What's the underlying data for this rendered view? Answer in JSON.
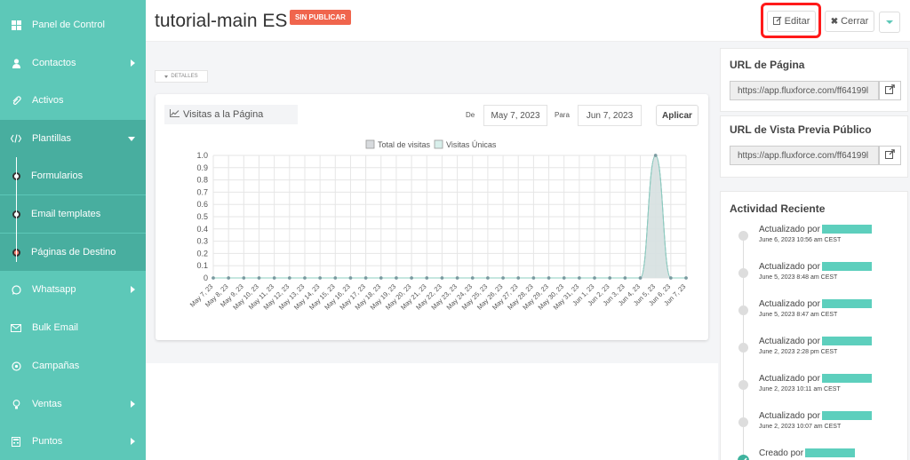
{
  "sidebar": {
    "items": [
      {
        "label": "Panel de Control",
        "icon": "grid-icon"
      },
      {
        "label": "Contactos",
        "icon": "user-icon"
      },
      {
        "label": "Activos",
        "icon": "paperclip-icon"
      },
      {
        "label": "Plantillas",
        "icon": "code-icon"
      },
      {
        "label": "Formularios"
      },
      {
        "label": "Email templates"
      },
      {
        "label": "Páginas de Destino"
      },
      {
        "label": "Whatsapp",
        "icon": "whatsapp-icon"
      },
      {
        "label": "Bulk Email",
        "icon": "envelope-icon"
      },
      {
        "label": "Campañas",
        "icon": "target-icon"
      },
      {
        "label": "Ventas",
        "icon": "lightbulb-icon"
      },
      {
        "label": "Puntos",
        "icon": "calculator-icon"
      }
    ]
  },
  "header": {
    "title": "tutorial-main ES",
    "badge": "SIN PUBLICAR",
    "edit_label": "Editar",
    "close_label": "Cerrar"
  },
  "tab": {
    "label": "DETALLES"
  },
  "chart_card": {
    "title": "Visitas a la Página",
    "from_label": "De",
    "from_value": "May 7, 2023",
    "to_label": "Para",
    "to_value": "Jun 7, 2023",
    "apply_label": "Aplicar"
  },
  "chart_data": {
    "type": "area",
    "series": [
      {
        "name": "Total de visitas",
        "color": "#d7dadd",
        "values": [
          0,
          0,
          0,
          0,
          0,
          0,
          0,
          0,
          0,
          0,
          0,
          0,
          0,
          0,
          0,
          0,
          0,
          0,
          0,
          0,
          0,
          0,
          0,
          0,
          0,
          0,
          0,
          0,
          0,
          1,
          0,
          0
        ]
      },
      {
        "name": "Visitas Únicas",
        "color": "#d8efeb",
        "values": [
          0,
          0,
          0,
          0,
          0,
          0,
          0,
          0,
          0,
          0,
          0,
          0,
          0,
          0,
          0,
          0,
          0,
          0,
          0,
          0,
          0,
          0,
          0,
          0,
          0,
          0,
          0,
          0,
          0,
          1,
          0,
          0
        ]
      }
    ],
    "categories": [
      "May 7, 23",
      "May 8, 23",
      "May 9, 23",
      "May 10, 23",
      "May 11, 23",
      "May 12, 23",
      "May 13, 23",
      "May 14, 23",
      "May 15, 23",
      "May 16, 23",
      "May 17, 23",
      "May 18, 23",
      "May 19, 23",
      "May 20, 23",
      "May 21, 23",
      "May 22, 23",
      "May 23, 23",
      "May 24, 23",
      "May 25, 23",
      "May 26, 23",
      "May 27, 23",
      "May 28, 23",
      "May 29, 23",
      "May 30, 23",
      "May 31, 23",
      "Jun 1, 23",
      "Jun 2, 23",
      "Jun 3, 23",
      "Jun 4, 23",
      "Jun 5, 23",
      "Jun 6, 23",
      "Jun 7, 23"
    ],
    "yticks": [
      "1.0",
      "0.9",
      "0.8",
      "0.7",
      "0.6",
      "0.5",
      "0.4",
      "0.3",
      "0.2",
      "0.1",
      "0"
    ],
    "ylim": [
      0,
      1
    ],
    "grid": true,
    "legend": "top"
  },
  "right_panel": {
    "url_title": "URL de Página",
    "url_value": "https://app.fluxforce.com/ff64199l",
    "preview_title": "URL de Vista Previa Público",
    "preview_value": "https://app.fluxforce.com/ff64199l",
    "activity_title": "Actividad Reciente",
    "activity": [
      {
        "text": "Actualizado por",
        "date": "June 6, 2023 10:56 am CEST"
      },
      {
        "text": "Actualizado por",
        "date": "June 5, 2023 8:48 am CEST"
      },
      {
        "text": "Actualizado por",
        "date": "June 5, 2023 8:47 am CEST"
      },
      {
        "text": "Actualizado por",
        "date": "June 2, 2023 2:28 pm CEST"
      },
      {
        "text": "Actualizado por",
        "date": "June 2, 2023 10:11 am CEST"
      },
      {
        "text": "Actualizado por",
        "date": "June 2, 2023 10:07 am CEST"
      },
      {
        "text": "Creado por",
        "date": ""
      }
    ]
  }
}
